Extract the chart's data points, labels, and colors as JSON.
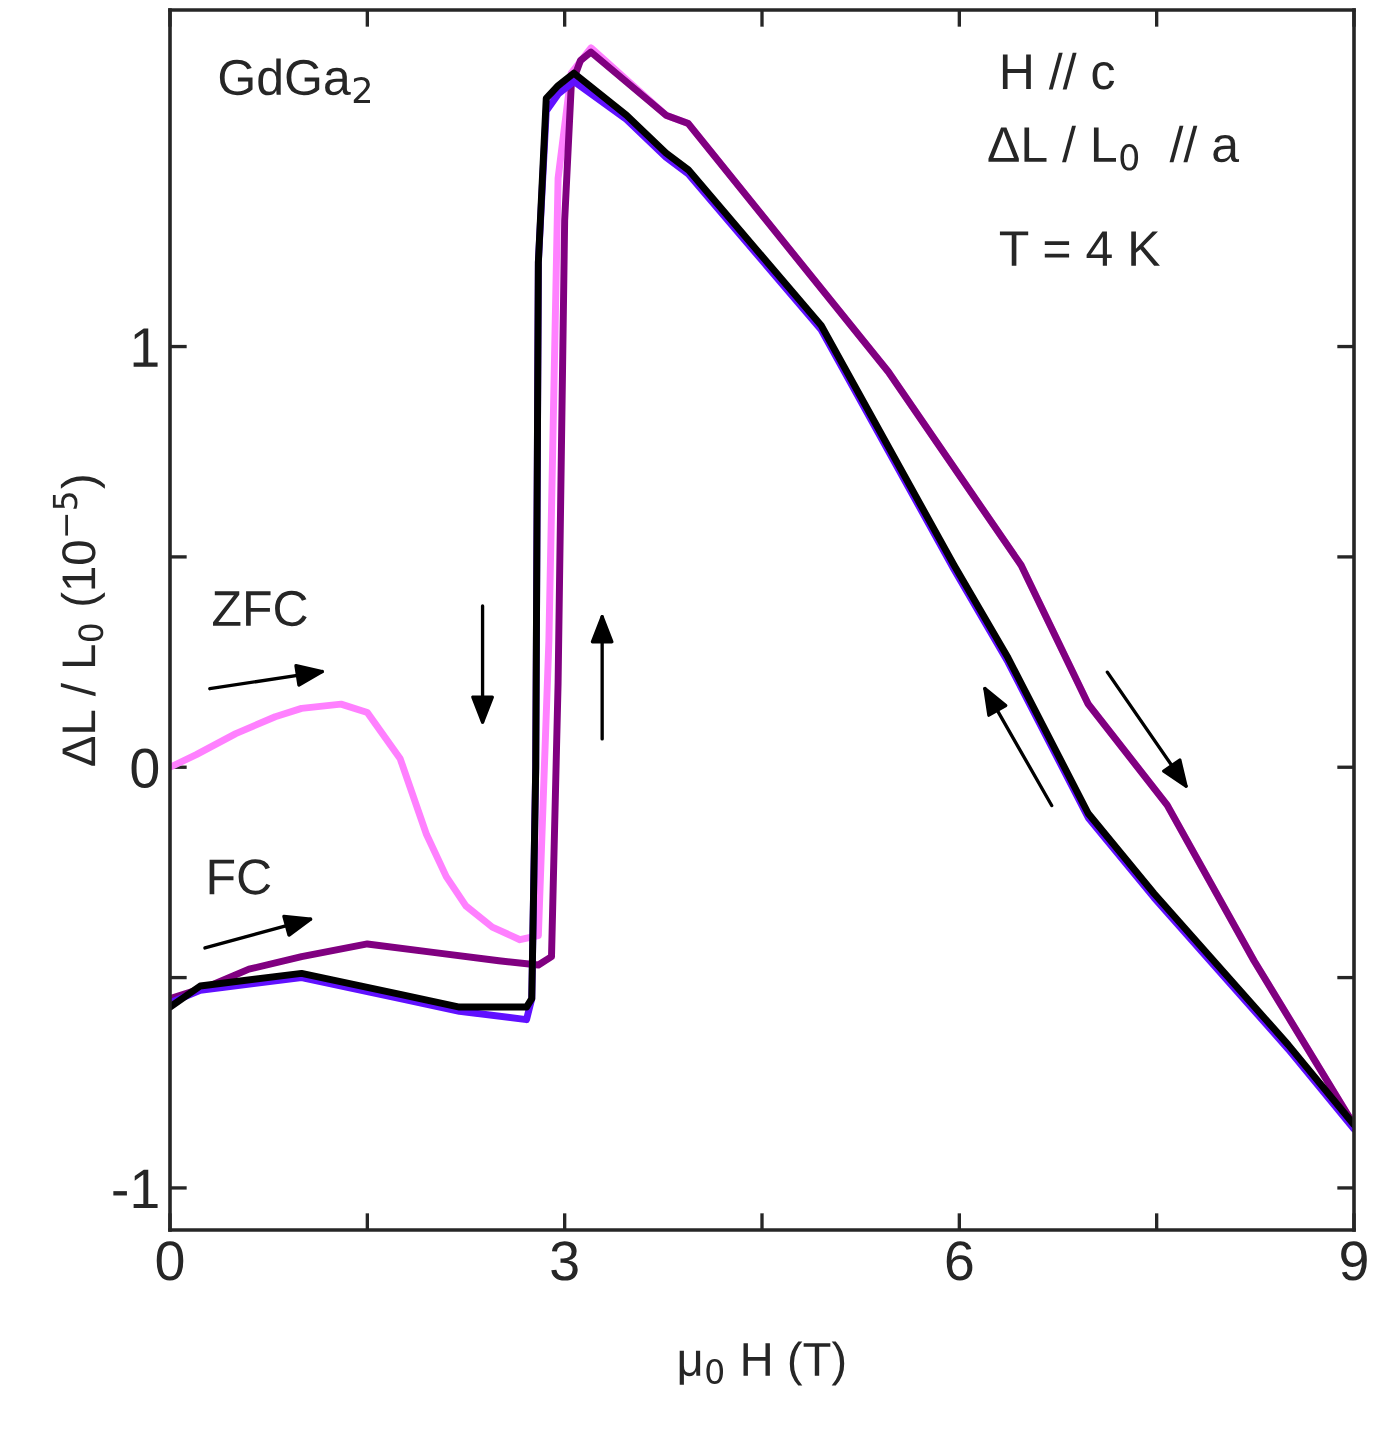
{
  "chart_data": {
    "type": "line",
    "xlabel": "μ$_{0}$ H (T)",
    "ylabel": "ΔL / L$_{0}$ (10$^{−5}$)",
    "xlim": [
      0,
      9
    ],
    "ylim": [
      -1.1,
      1.8
    ],
    "xticks": [
      0,
      {
        "value": 1.5,
        "label": null
      },
      3,
      {
        "value": 4.5,
        "label": null
      },
      6,
      {
        "value": 7.5,
        "label": null
      },
      9
    ],
    "yticks": [
      -1,
      {
        "value": -0.5,
        "label": null
      },
      0,
      {
        "value": 0.5,
        "label": null
      },
      1
    ],
    "grid": false,
    "marker": "none",
    "line_style": "solid",
    "annotations": [
      "GdGa$_{2}$",
      "H // c",
      "ΔL / L$_{0}$  // a",
      "T = 4 K",
      "ZFC",
      "FC"
    ],
    "series": [
      {
        "color": "#ff80ff",
        "x": [
          0,
          0.2,
          0.5,
          0.8,
          1.0,
          1.3,
          1.5,
          1.75,
          1.95,
          2.1,
          2.25,
          2.45,
          2.66,
          2.8,
          2.88,
          2.95,
          3.05,
          3.2,
          3.77,
          3.94,
          5.46,
          6.47,
          6.98,
          7.58,
          8.24,
          9
        ],
        "values": [
          0,
          0.03,
          0.08,
          0.12,
          0.14,
          0.15,
          0.13,
          0.02,
          -0.16,
          -0.26,
          -0.33,
          -0.38,
          -0.41,
          -0.4,
          0.3,
          1.4,
          1.65,
          1.71,
          1.55,
          1.53,
          0.94,
          0.48,
          0.15,
          -0.09,
          -0.46,
          -0.85
        ]
      },
      {
        "color": "#800080",
        "x": [
          0,
          0.3,
          0.6,
          1.0,
          1.5,
          2.0,
          2.5,
          2.8,
          2.9,
          2.95,
          3.0,
          3.05,
          3.12,
          3.2,
          3.77,
          3.94,
          5.46,
          6.47,
          6.98,
          7.58,
          8.24,
          9
        ],
        "values": [
          -0.55,
          -0.52,
          -0.48,
          -0.45,
          -0.42,
          -0.44,
          -0.46,
          -0.47,
          -0.45,
          0.2,
          1.3,
          1.62,
          1.68,
          1.7,
          1.55,
          1.53,
          0.94,
          0.48,
          0.15,
          -0.09,
          -0.46,
          -0.85
        ]
      },
      {
        "color": "#6010ff",
        "x": [
          9,
          8.5,
          7.48,
          6.98,
          6.37,
          5.96,
          4.95,
          3.94,
          3.77,
          3.47,
          3.07,
          2.95,
          2.86,
          2.8,
          2.78,
          2.75,
          2.71,
          2.2,
          1.75,
          1.0,
          0.23,
          0
        ],
        "values": [
          -0.86,
          -0.67,
          -0.31,
          -0.12,
          0.25,
          0.47,
          1.04,
          1.41,
          1.45,
          1.54,
          1.63,
          1.6,
          1.56,
          1.2,
          0.0,
          -0.55,
          -0.6,
          -0.58,
          -0.55,
          -0.5,
          -0.53,
          -0.56
        ]
      },
      {
        "color": "#000000",
        "x": [
          9,
          8.5,
          7.48,
          6.98,
          6.37,
          5.96,
          4.95,
          3.94,
          3.77,
          3.47,
          3.07,
          2.95,
          2.86,
          2.8,
          2.78,
          2.75,
          2.71,
          2.2,
          1.75,
          1.0,
          0.23,
          0
        ],
        "values": [
          -0.85,
          -0.66,
          -0.3,
          -0.11,
          0.26,
          0.48,
          1.05,
          1.42,
          1.46,
          1.55,
          1.65,
          1.62,
          1.59,
          1.2,
          0.0,
          -0.55,
          -0.57,
          -0.57,
          -0.54,
          -0.49,
          -0.52,
          -0.57
        ]
      }
    ]
  }
}
